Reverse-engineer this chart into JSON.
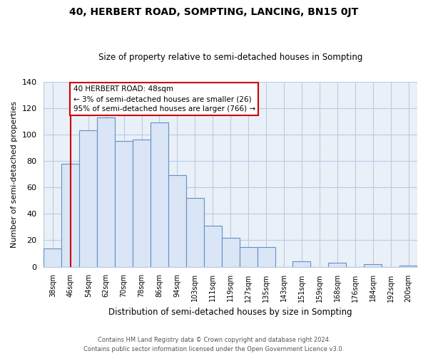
{
  "title": "40, HERBERT ROAD, SOMPTING, LANCING, BN15 0JT",
  "subtitle": "Size of property relative to semi-detached houses in Sompting",
  "xlabel": "Distribution of semi-detached houses by size in Sompting",
  "ylabel": "Number of semi-detached properties",
  "bar_labels": [
    "38sqm",
    "46sqm",
    "54sqm",
    "62sqm",
    "70sqm",
    "78sqm",
    "86sqm",
    "94sqm",
    "103sqm",
    "111sqm",
    "119sqm",
    "127sqm",
    "135sqm",
    "143sqm",
    "151sqm",
    "159sqm",
    "168sqm",
    "176sqm",
    "184sqm",
    "192sqm",
    "200sqm"
  ],
  "bar_values": [
    14,
    78,
    103,
    113,
    95,
    96,
    109,
    69,
    52,
    31,
    22,
    15,
    15,
    0,
    4,
    0,
    3,
    0,
    2,
    0,
    1
  ],
  "bar_color": "#dae5f5",
  "bar_edge_color": "#6090c8",
  "vline_x": 1,
  "vline_color": "#cc0000",
  "annotation_title": "40 HERBERT ROAD: 48sqm",
  "annotation_line1": "← 3% of semi-detached houses are smaller (26)",
  "annotation_line2": "95% of semi-detached houses are larger (766) →",
  "annotation_box_color": "#ffffff",
  "annotation_box_edge": "#cc0000",
  "ylim": [
    0,
    140
  ],
  "yticks": [
    0,
    20,
    40,
    60,
    80,
    100,
    120,
    140
  ],
  "footer1": "Contains HM Land Registry data © Crown copyright and database right 2024.",
  "footer2": "Contains public sector information licensed under the Open Government Licence v3.0.",
  "bg_color": "#ffffff",
  "grid_color": "#b8cce4"
}
